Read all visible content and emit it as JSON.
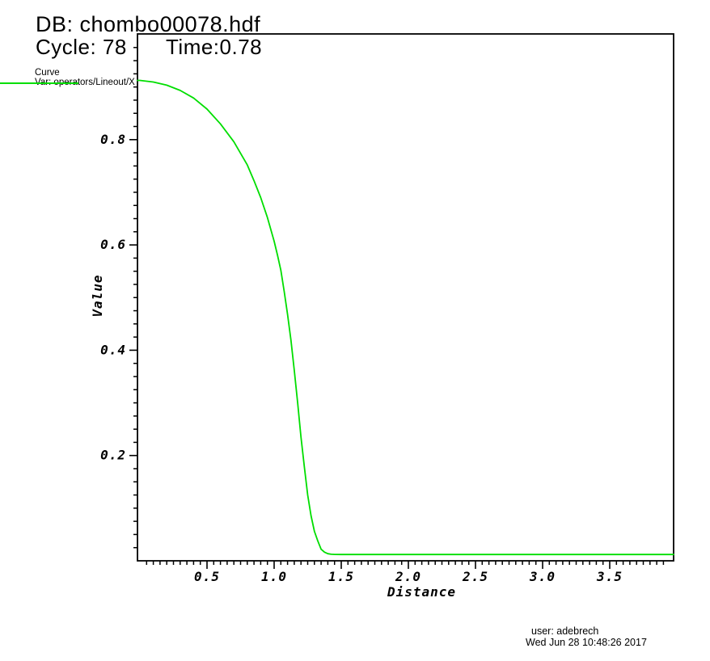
{
  "header": {
    "db_title": "DB: chombo00078.hdf",
    "cycle_label": "Cycle: 78",
    "time_label": "Time:0.78"
  },
  "legend": {
    "group_label": "Curve",
    "var_label": "Var: operators/Lineout/X",
    "swatch_color": "#00de00"
  },
  "footer": {
    "user_line": "user: adebrech",
    "date_line": "Wed Jun 28 10:48:26 2017"
  },
  "colors": {
    "curve": "#00de00",
    "axis": "#000000",
    "background": "#ffffff",
    "text": "#000000"
  },
  "chart_data": {
    "type": "line",
    "title": "DB: chombo00078.hdf",
    "xlabel": "Distance",
    "ylabel": "Value",
    "xlim": [
      0,
      3.97
    ],
    "ylim": [
      0,
      1.0
    ],
    "grid": false,
    "frame": true,
    "x_major_ticks": [
      0.5,
      1.0,
      1.5,
      2.0,
      2.5,
      3.0,
      3.5
    ],
    "x_minor_step": 0.05,
    "y_major_ticks": [
      0.2,
      0.4,
      0.6,
      0.8
    ],
    "y_minor_step": 0.025,
    "tick_label_decimals": 1,
    "series": [
      {
        "name": "operators/Lineout/X",
        "color": "#00de00",
        "x": [
          0,
          0.1,
          0.2,
          0.3,
          0.4,
          0.5,
          0.6,
          0.7,
          0.8,
          0.85,
          0.9,
          0.95,
          1.0,
          1.025,
          1.05,
          1.075,
          1.1,
          1.125,
          1.15,
          1.175,
          1.2,
          1.225,
          1.25,
          1.275,
          1.3,
          1.325,
          1.35,
          1.375,
          1.4,
          1.425,
          1.45,
          1.5,
          1.6,
          1.8,
          2.0,
          2.5,
          3.0,
          3.5,
          3.976
        ],
        "y": [
          0.9125,
          0.9095,
          0.9035,
          0.8935,
          0.879,
          0.858,
          0.83,
          0.796,
          0.752,
          0.722,
          0.69,
          0.652,
          0.607,
          0.581,
          0.552,
          0.512,
          0.468,
          0.419,
          0.362,
          0.3,
          0.235,
          0.178,
          0.125,
          0.086,
          0.056,
          0.038,
          0.022,
          0.0165,
          0.0135,
          0.0125,
          0.0122,
          0.012,
          0.012,
          0.012,
          0.012,
          0.012,
          0.012,
          0.012,
          0.012
        ]
      }
    ]
  }
}
